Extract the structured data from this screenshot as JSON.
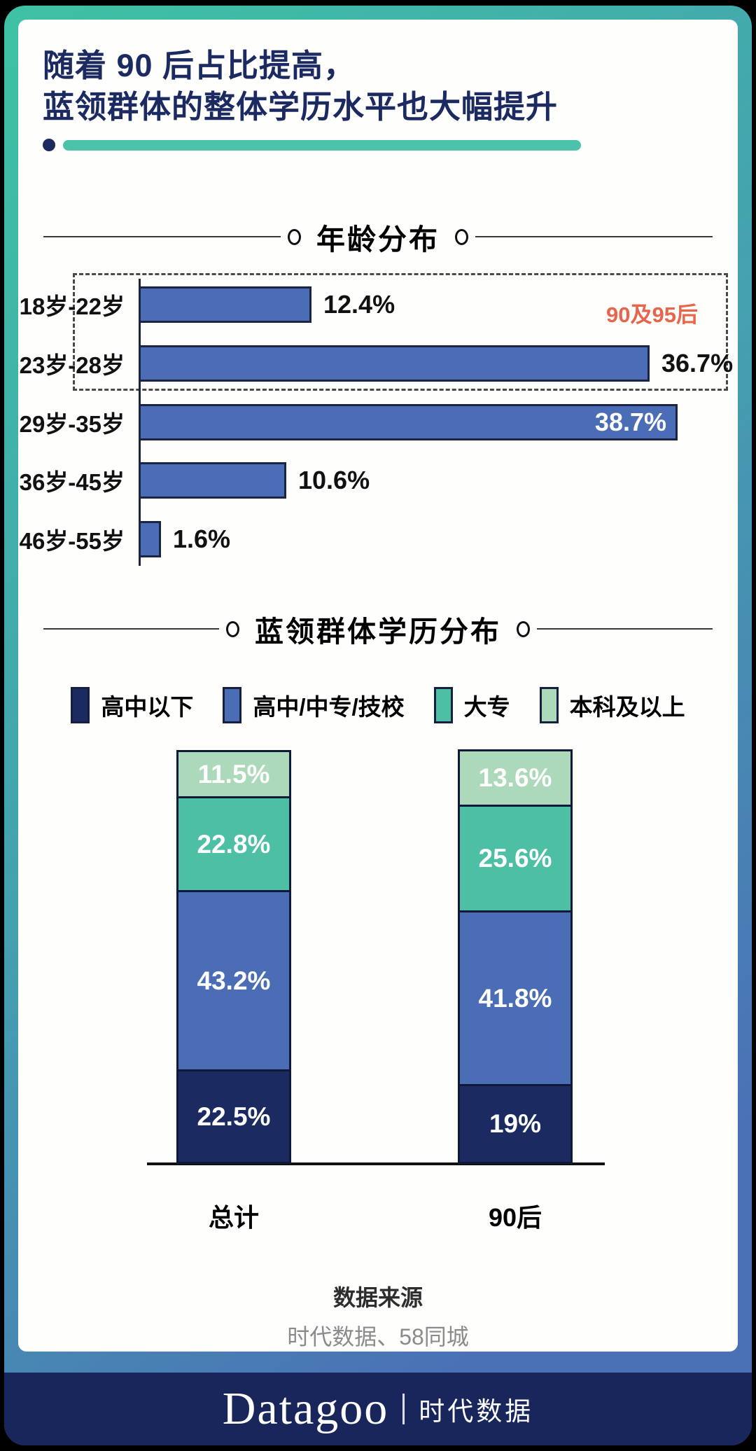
{
  "title": {
    "line1": "随着 90 后占比提高，",
    "line2": "蓝领群体的整体学历水平也大幅提升"
  },
  "colors": {
    "accent_teal": "#4cc2ab",
    "navy": "#1b2a60",
    "bar_blue": "#4a6db6",
    "teal": "#4dbfa4",
    "light_green": "#abd9ba",
    "orange": "#e8644a",
    "footer_navy": "#18265c"
  },
  "chart_data": [
    {
      "type": "bar",
      "orientation": "horizontal",
      "title": "年龄分布",
      "categories": [
        "18岁-22岁",
        "23岁-28岁",
        "29岁-35岁",
        "36岁-45岁",
        "46岁-55岁"
      ],
      "values": [
        12.4,
        36.7,
        38.7,
        10.6,
        1.6
      ],
      "value_labels": [
        "12.4%",
        "36.7%",
        "38.7%",
        "10.6%",
        "1.6%"
      ],
      "value_label_position": [
        "outside",
        "outside",
        "inside",
        "outside",
        "outside"
      ],
      "bar_color": "#4a6db6",
      "xlim": [
        0,
        46
      ],
      "grid": false,
      "annotation": {
        "text": "90及95后",
        "color": "#e8644a",
        "covers": [
          "18岁-22岁",
          "23岁-28岁"
        ]
      }
    },
    {
      "type": "bar",
      "stacked": true,
      "title": "蓝领群体学历分布",
      "categories": [
        "总计",
        "90后"
      ],
      "ylim": [
        0,
        100
      ],
      "grid": false,
      "legend_position": "top",
      "series": [
        {
          "name": "高中以下",
          "color": "#1b2b62",
          "values": [
            22.5,
            19
          ],
          "labels": [
            "22.5%",
            "19%"
          ]
        },
        {
          "name": "高中/中专/技校",
          "color": "#4a6db6",
          "values": [
            43.2,
            41.8
          ],
          "labels": [
            "43.2%",
            "41.8%"
          ]
        },
        {
          "name": "大专",
          "color": "#4dbfa4",
          "values": [
            22.8,
            25.6
          ],
          "labels": [
            "22.8%",
            "25.6%"
          ]
        },
        {
          "name": "本科及以上",
          "color": "#abd9ba",
          "values": [
            11.5,
            13.6
          ],
          "labels": [
            "11.5%",
            "13.6%"
          ]
        }
      ]
    }
  ],
  "source": {
    "label": "数据来源",
    "text": "时代数据、58同城"
  },
  "footer": {
    "brand": "Datagoo",
    "brand_cn": "时代数据"
  }
}
